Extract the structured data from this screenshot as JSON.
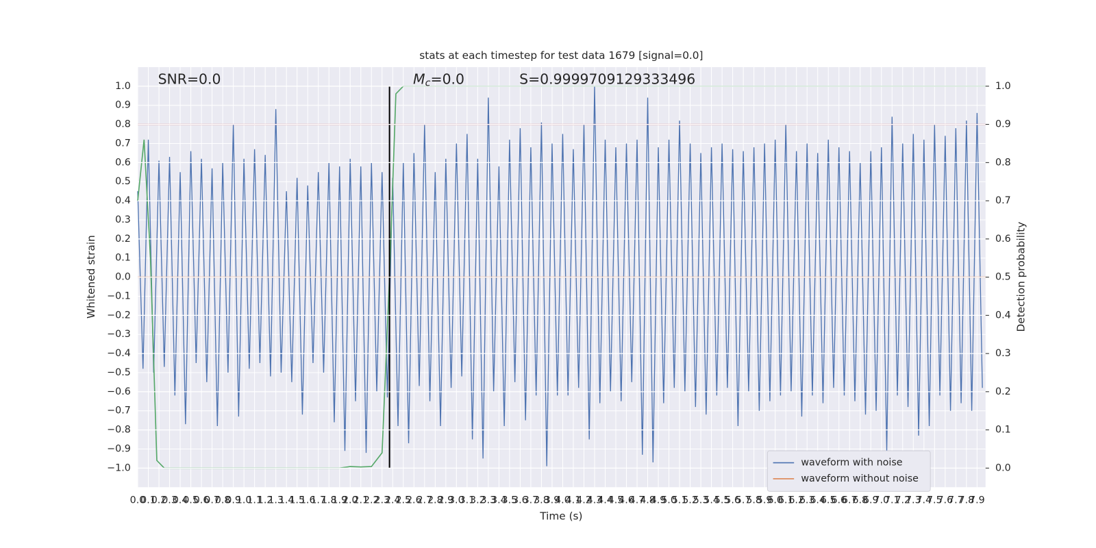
{
  "chart_data": {
    "type": "line",
    "title": "stats at each timestep for test data 1679 [signal=0.0]",
    "xlabel": "Time (s)",
    "ylabel": "Whitened strain",
    "y2label": "Detection probability",
    "annotations": {
      "snr": "SNR=0.0",
      "mass": {
        "symbol": "M",
        "sub": "c",
        "text": "=0.0"
      },
      "score": "S=0.9999709129333496"
    },
    "xlim": [
      0,
      7.98
    ],
    "ylim": [
      -1.1,
      1.1
    ],
    "y2lim": [
      -0.05,
      1.05
    ],
    "grid": true,
    "legend": "lower right",
    "xticks": [
      {
        "value": 0,
        "label": "0.0"
      },
      0.1,
      0.2,
      0.3,
      0.4,
      0.5,
      0.6,
      0.7,
      0.8,
      0.9,
      {
        "value": 1,
        "label": "1.0"
      },
      1.1,
      1.2,
      1.3,
      1.4,
      1.5,
      1.6,
      1.7,
      1.8,
      1.9,
      {
        "value": 2,
        "label": "2.0"
      },
      2.1,
      2.2,
      2.3,
      2.4,
      2.5,
      2.6,
      2.7,
      2.8,
      2.9,
      {
        "value": 3,
        "label": "3.0"
      },
      3.1,
      3.2,
      3.3,
      3.4,
      3.5,
      3.6,
      3.7,
      3.8,
      3.9,
      {
        "value": 4,
        "label": "4.0"
      },
      4.1,
      4.2,
      4.3,
      4.4,
      4.5,
      4.6,
      4.7,
      4.8,
      4.9,
      {
        "value": 5,
        "label": "5.0"
      },
      5.1,
      5.2,
      5.3,
      5.4,
      5.5,
      5.6,
      5.7,
      5.8,
      5.9,
      {
        "value": 6,
        "label": "6.0"
      },
      6.1,
      6.2,
      6.3,
      6.4,
      6.5,
      6.6,
      6.7,
      6.8,
      6.9,
      {
        "value": 7,
        "label": "7.0"
      },
      7.1,
      7.2,
      7.3,
      7.4,
      7.5,
      7.6,
      7.7,
      7.8,
      7.9
    ],
    "yticks": [
      {
        "value": -1,
        "label": "−1.0"
      },
      {
        "value": -0.9,
        "label": "−0.9"
      },
      {
        "value": -0.8,
        "label": "−0.8"
      },
      {
        "value": -0.7,
        "label": "−0.7"
      },
      {
        "value": -0.6,
        "label": "−0.6"
      },
      {
        "value": -0.5,
        "label": "−0.5"
      },
      {
        "value": -0.4,
        "label": "−0.4"
      },
      {
        "value": -0.3,
        "label": "−0.3"
      },
      {
        "value": -0.2,
        "label": "−0.2"
      },
      {
        "value": -0.1,
        "label": "−0.1"
      },
      {
        "value": 0,
        "label": "0.0"
      },
      0.1,
      0.2,
      0.3,
      0.4,
      0.5,
      0.6,
      0.7,
      0.8,
      0.9,
      {
        "value": 1,
        "label": "1.0"
      }
    ],
    "y2ticks": [
      {
        "value": 0,
        "label": "0.0"
      },
      0.1,
      0.2,
      0.3,
      0.4,
      0.5,
      0.6,
      0.7,
      0.8,
      0.9,
      {
        "value": 1,
        "label": "1.0"
      }
    ],
    "hlines": [
      {
        "value": 0.8,
        "color": "#c44e52"
      }
    ],
    "vlines": [
      {
        "value": 2.37,
        "ymin": -1,
        "ymax": 1,
        "color": "#000000"
      }
    ],
    "series": [
      {
        "name": "waveform with noise",
        "color": "#4c72b0",
        "x": [
          0,
          0.05,
          0.1,
          0.15,
          0.2,
          0.25,
          0.3,
          0.35,
          0.4,
          0.45,
          0.5,
          0.55,
          0.6,
          0.65,
          0.7,
          0.75,
          0.8,
          0.85,
          0.9,
          0.95,
          1,
          1.05,
          1.1,
          1.15,
          1.2,
          1.25,
          1.3,
          1.35,
          1.4,
          1.45,
          1.5,
          1.55,
          1.6,
          1.65,
          1.7,
          1.75,
          1.8,
          1.85,
          1.9,
          1.95,
          2,
          2.05,
          2.1,
          2.15,
          2.2,
          2.25,
          2.3,
          2.35,
          2.4,
          2.45,
          2.5,
          2.55,
          2.6,
          2.65,
          2.7,
          2.75,
          2.8,
          2.85,
          2.9,
          2.95,
          3,
          3.05,
          3.1,
          3.15,
          3.2,
          3.25,
          3.3,
          3.35,
          3.4,
          3.45,
          3.5,
          3.55,
          3.6,
          3.65,
          3.7,
          3.75,
          3.8,
          3.85,
          3.9,
          3.95,
          4,
          4.05,
          4.1,
          4.15,
          4.2,
          4.25,
          4.3,
          4.35,
          4.4,
          4.45,
          4.5,
          4.55,
          4.6,
          4.65,
          4.7,
          4.75,
          4.8,
          4.85,
          4.9,
          4.95,
          5,
          5.05,
          5.1,
          5.15,
          5.2,
          5.25,
          5.3,
          5.35,
          5.4,
          5.45,
          5.5,
          5.55,
          5.6,
          5.65,
          5.7,
          5.75,
          5.8,
          5.85,
          5.9,
          5.95,
          6,
          6.05,
          6.1,
          6.15,
          6.2,
          6.25,
          6.3,
          6.35,
          6.4,
          6.45,
          6.5,
          6.55,
          6.6,
          6.65,
          6.7,
          6.75,
          6.8,
          6.85,
          6.9,
          6.95,
          7,
          7.05,
          7.1,
          7.15,
          7.2,
          7.25,
          7.3,
          7.35,
          7.4,
          7.45,
          7.5,
          7.55,
          7.6,
          7.65,
          7.7,
          7.75,
          7.8,
          7.85,
          7.9,
          7.95
        ],
        "values": [
          0.45,
          -0.48,
          0.72,
          -0.5,
          0.61,
          -0.47,
          0.63,
          -0.62,
          0.55,
          -0.77,
          0.66,
          -0.45,
          0.62,
          -0.55,
          0.57,
          -0.78,
          0.6,
          -0.5,
          0.8,
          -0.73,
          0.62,
          -0.48,
          0.67,
          -0.45,
          0.64,
          -0.52,
          0.88,
          -0.5,
          0.45,
          -0.55,
          0.52,
          -0.72,
          0.48,
          -0.45,
          0.55,
          -0.5,
          0.6,
          -0.76,
          0.58,
          -0.91,
          0.62,
          -0.65,
          0.58,
          -0.92,
          0.6,
          -0.6,
          0.55,
          -0.63,
          0.52,
          -0.78,
          0.6,
          -0.87,
          0.65,
          -0.57,
          0.8,
          -0.65,
          0.55,
          -0.78,
          0.62,
          -0.58,
          0.7,
          -0.52,
          0.75,
          -0.85,
          0.62,
          -0.95,
          0.94,
          -0.6,
          0.58,
          -0.78,
          0.72,
          -0.55,
          0.78,
          -0.75,
          0.68,
          -0.62,
          0.81,
          -0.99,
          0.7,
          -0.62,
          0.75,
          -0.62,
          0.67,
          -0.58,
          0.8,
          -0.85,
          1.0,
          -0.66,
          0.72,
          -0.6,
          0.68,
          -0.65,
          0.7,
          -0.55,
          0.72,
          -0.93,
          0.94,
          -0.97,
          0.68,
          -0.66,
          0.72,
          -0.58,
          0.82,
          -0.6,
          0.7,
          -0.68,
          0.65,
          -0.72,
          0.68,
          -0.62,
          0.7,
          -0.58,
          0.67,
          -0.78,
          0.66,
          -0.6,
          0.68,
          -0.7,
          0.7,
          -0.65,
          0.72,
          -0.62,
          0.8,
          -0.6,
          0.66,
          -0.73,
          0.7,
          -0.62,
          0.65,
          -0.66,
          0.72,
          -0.58,
          0.68,
          -0.62,
          0.66,
          -0.65,
          0.6,
          -0.72,
          0.66,
          -0.7,
          0.68,
          -0.91,
          0.84,
          -0.62,
          0.7,
          -0.68,
          0.75,
          -0.83,
          0.72,
          -0.78,
          0.8,
          -0.62,
          0.74,
          -0.7,
          0.78,
          -0.66,
          0.82,
          -0.7,
          0.86,
          -0.58
        ]
      },
      {
        "name": "waveform without noise",
        "color": "#dd8452",
        "x": [
          0,
          7.98
        ],
        "values": [
          0,
          0
        ]
      },
      {
        "color": "#55a868",
        "axis": "y2",
        "x": [
          0,
          0.06,
          0.12,
          0.18,
          0.25,
          1.9,
          2.0,
          2.1,
          2.2,
          2.3,
          2.37,
          2.43,
          2.5,
          7.98
        ],
        "values": [
          0.7,
          0.86,
          0.55,
          0.02,
          0,
          0,
          0.004,
          0.003,
          0.004,
          0.04,
          0.5,
          0.98,
          1.0,
          1.0
        ]
      }
    ]
  }
}
